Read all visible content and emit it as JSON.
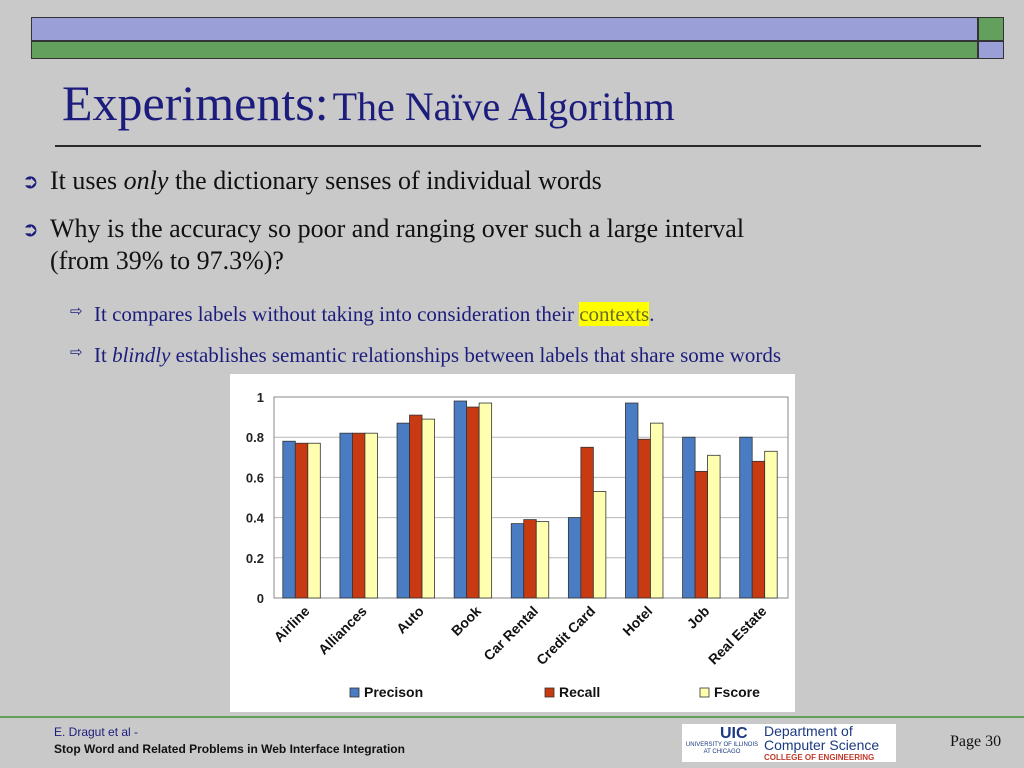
{
  "title": {
    "main": "Experiments:",
    "sub": "The Naïve Algorithm"
  },
  "bullets": [
    {
      "before": "It uses ",
      "em": "only",
      "after": " the dictionary senses of individual words"
    },
    {
      "line1": "Why is the accuracy so poor and ranging over such a large interval",
      "line2": "(from 39% to 97.3%)?"
    }
  ],
  "sub_bullets": [
    {
      "before": "It compares labels without taking into consideration their ",
      "highlight": "contexts",
      "after": "."
    },
    {
      "before": "It ",
      "em": "blindly",
      "after": " establishes semantic relationships between labels that share some words"
    }
  ],
  "chart_data": {
    "type": "bar",
    "categories": [
      "Airline",
      "Alliances",
      "Auto",
      "Book",
      "Car Rental",
      "Credit Card",
      "Hotel",
      "Job",
      "Real Estate"
    ],
    "series": [
      {
        "name": "Precison",
        "color": "#4a7cc4",
        "values": [
          0.78,
          0.82,
          0.87,
          0.98,
          0.37,
          0.4,
          0.97,
          0.8,
          0.8
        ]
      },
      {
        "name": "Recall",
        "color": "#c73a12",
        "values": [
          0.77,
          0.82,
          0.91,
          0.95,
          0.39,
          0.75,
          0.79,
          0.63,
          0.68
        ]
      },
      {
        "name": "Fscore",
        "color": "#ffffb0",
        "values": [
          0.77,
          0.82,
          0.89,
          0.97,
          0.38,
          0.53,
          0.87,
          0.71,
          0.73
        ]
      }
    ],
    "yticks": [
      "0",
      "0.2",
      "0.4",
      "0.6",
      "0.8",
      "1"
    ],
    "ylim": [
      0,
      1
    ],
    "legend_position": "bottom"
  },
  "footer": {
    "line1": "E. Dragut et al -",
    "line2": "Stop Word and Related Problems in Web Interface Integration",
    "page": "Page 30"
  },
  "logo": {
    "uic": "UIC",
    "university": "UNIVERSITY OF ILLINOIS AT CHICAGO",
    "dept_line1": "Department of",
    "dept_line2": "Computer Science",
    "college": "COLLEGE OF ENGINEERING"
  }
}
